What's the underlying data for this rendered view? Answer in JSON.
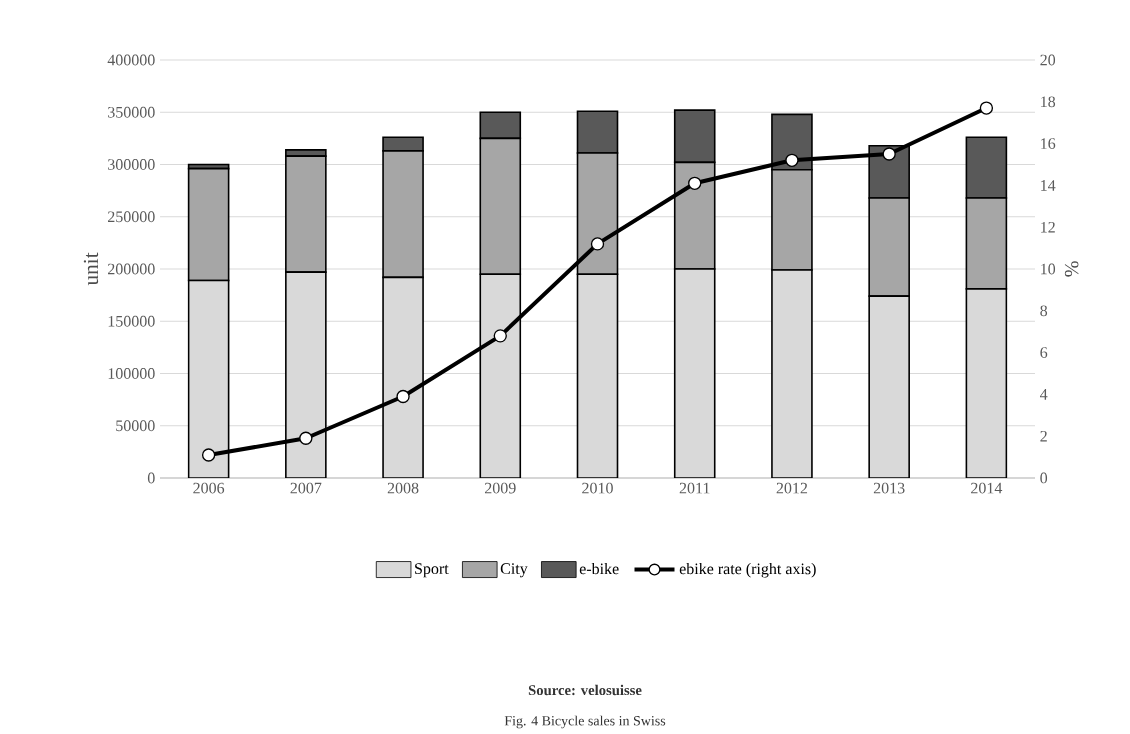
{
  "chart_data": {
    "type": "bar",
    "stacked": true,
    "ylabel": "unit",
    "y2label": "%",
    "categories": [
      "2006",
      "2007",
      "2008",
      "2009",
      "2010",
      "2011",
      "2012",
      "2013",
      "2014"
    ],
    "series": [
      {
        "name": "Sport",
        "color": "#d9d9d9",
        "values": [
          189000,
          197000,
          192000,
          195000,
          195000,
          200000,
          199000,
          174000,
          181000
        ]
      },
      {
        "name": "City",
        "color": "#a6a6a6",
        "values": [
          107000,
          111000,
          121000,
          130000,
          116000,
          102000,
          96000,
          94000,
          87000
        ]
      },
      {
        "name": "e-bike",
        "color": "#595959",
        "values": [
          4000,
          6000,
          13000,
          25000,
          40000,
          50000,
          53000,
          50000,
          58000
        ]
      },
      {
        "name": "ebike rate (right axis)",
        "type": "line",
        "axis": "y2",
        "color": "#000000",
        "marker": "circle",
        "values": [
          1.1,
          1.9,
          3.9,
          6.8,
          11.2,
          14.1,
          15.2,
          15.5,
          17.7
        ]
      }
    ],
    "ylim": [
      0,
      400000
    ],
    "yticks": [
      0,
      50000,
      100000,
      150000,
      200000,
      250000,
      300000,
      350000,
      400000
    ],
    "y2lim": [
      0,
      20
    ],
    "y2ticks": [
      0,
      2,
      4,
      6,
      8,
      10,
      12,
      14,
      16,
      18,
      20
    ],
    "grid": "y",
    "legend": "bottom",
    "annotations": [
      "**Source: velosuisse**",
      "Fig. 4 Bicycle sales in Swiss"
    ]
  }
}
